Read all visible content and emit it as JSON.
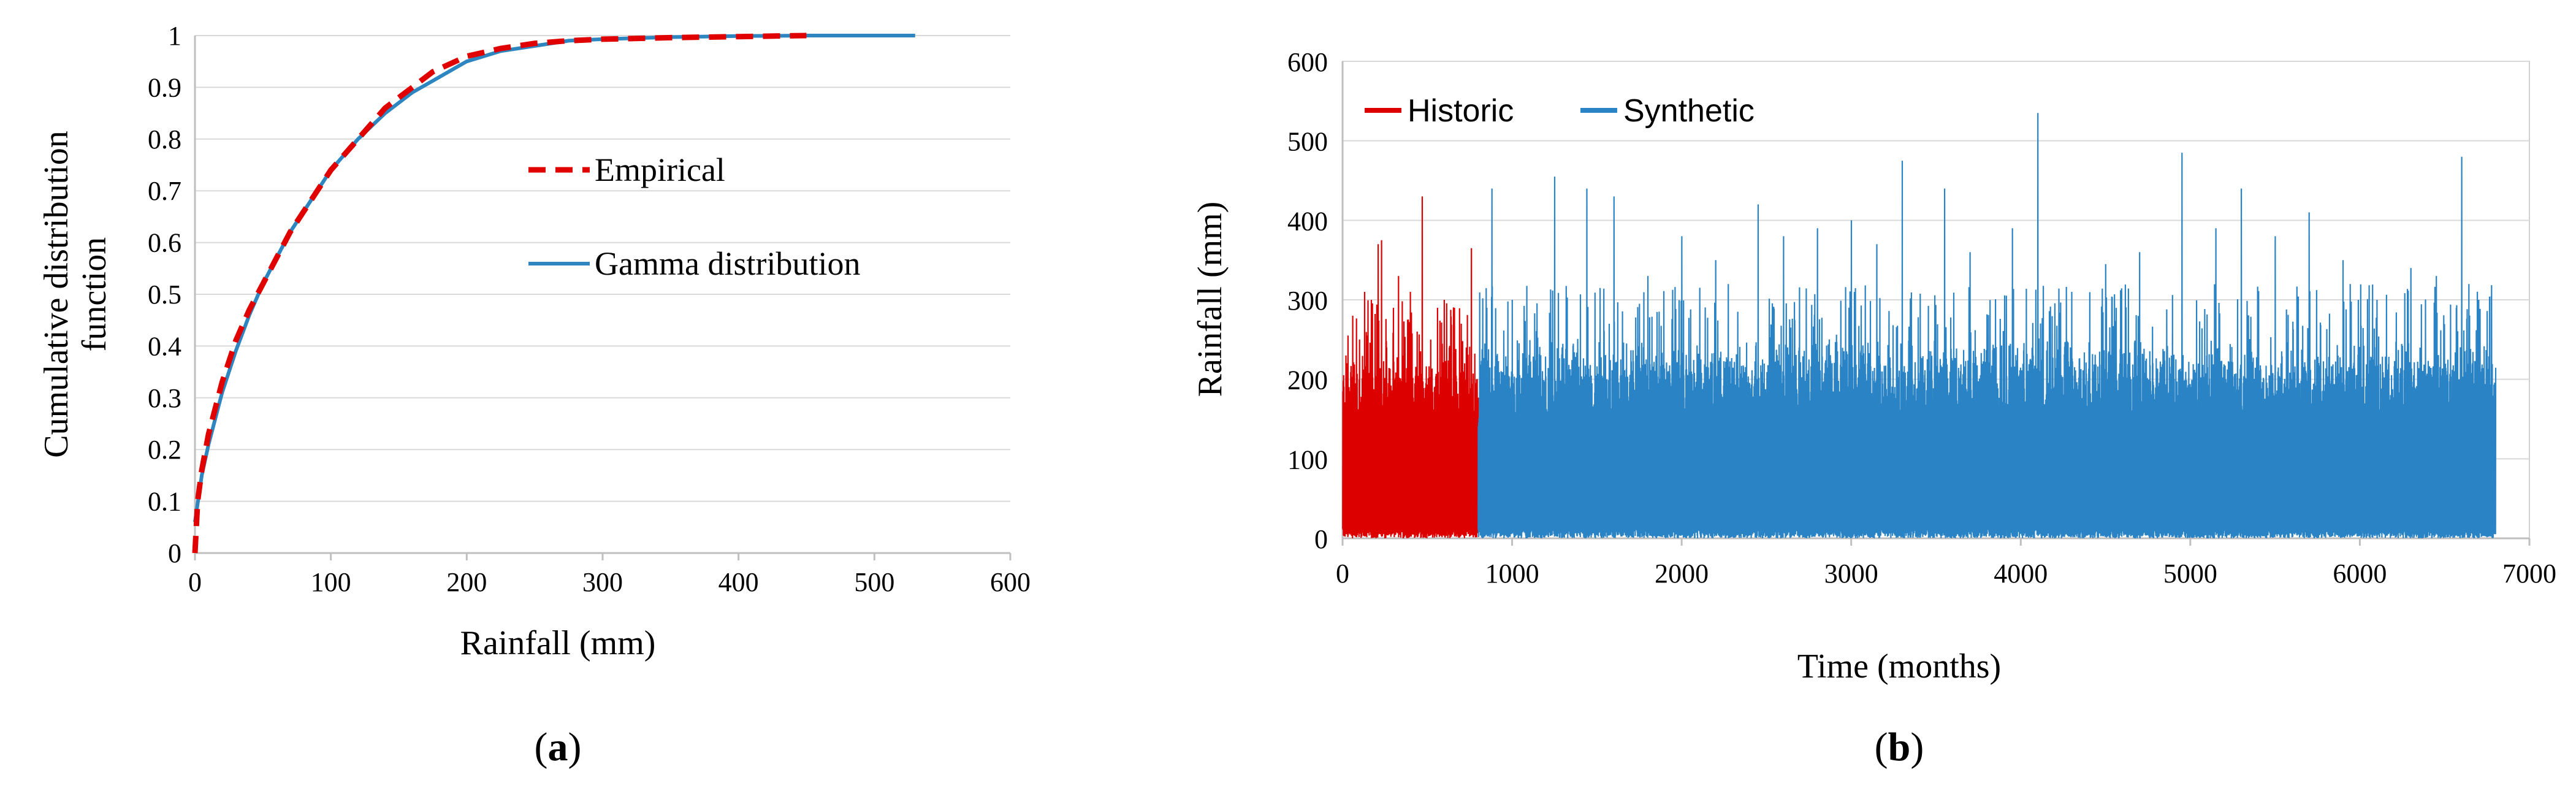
{
  "panel_a_caption": {
    "open": "(",
    "label": "a",
    "close": ")"
  },
  "panel_b_caption": {
    "open": "(",
    "label": "b",
    "close": ")"
  },
  "colors": {
    "empirical": "#e00000",
    "gamma": "#2e86c1",
    "historic": "#dd0000",
    "synthetic": "#2a83c4",
    "grid": "#d9d9d9",
    "axis": "#bfbfbf"
  },
  "chart_data": [
    {
      "type": "line",
      "panel": "a",
      "xlabel": "Rainfall (mm)",
      "ylabel": [
        "Cumulative distribution",
        "function"
      ],
      "xlim": [
        0,
        600
      ],
      "ylim": [
        0,
        1
      ],
      "xticks": [
        "0",
        "100",
        "200",
        "300",
        "400",
        "500",
        "600"
      ],
      "yticks": [
        "0",
        "0.1",
        "0.2",
        "0.3",
        "0.4",
        "0.5",
        "0.6",
        "0.7",
        "0.8",
        "0.9",
        "1"
      ],
      "grid": "horizontal",
      "legend_position": "center-right",
      "series": [
        {
          "name": "Empirical",
          "style": "dashed",
          "x": [
            0,
            2,
            5,
            10,
            20,
            30,
            40,
            50,
            60,
            70,
            80,
            90,
            100,
            110,
            120,
            130,
            140,
            150,
            160,
            175,
            200,
            225,
            250,
            275,
            300,
            350,
            400,
            450
          ],
          "y": [
            0.0,
            0.1,
            0.16,
            0.23,
            0.33,
            0.41,
            0.47,
            0.52,
            0.57,
            0.62,
            0.66,
            0.7,
            0.74,
            0.77,
            0.8,
            0.83,
            0.86,
            0.88,
            0.9,
            0.93,
            0.96,
            0.975,
            0.985,
            0.99,
            0.993,
            0.996,
            0.998,
            1.0
          ]
        },
        {
          "name": "Gamma distribution",
          "style": "solid",
          "x": [
            0,
            5,
            10,
            20,
            30,
            40,
            50,
            60,
            70,
            80,
            90,
            100,
            120,
            140,
            160,
            180,
            200,
            225,
            250,
            275,
            300,
            350,
            400,
            450,
            530
          ],
          "y": [
            0.06,
            0.15,
            0.21,
            0.31,
            0.39,
            0.46,
            0.52,
            0.57,
            0.62,
            0.66,
            0.7,
            0.74,
            0.8,
            0.85,
            0.89,
            0.92,
            0.95,
            0.97,
            0.98,
            0.99,
            0.993,
            0.997,
            0.999,
            1.0,
            1.0
          ]
        }
      ]
    },
    {
      "type": "line",
      "panel": "b",
      "xlabel": "Time (months)",
      "ylabel": "Rainfall (mm)",
      "xlim": [
        0,
        7000
      ],
      "ylim": [
        0,
        600
      ],
      "xticks": [
        "0",
        "1000",
        "2000",
        "3000",
        "4000",
        "5000",
        "6000",
        "7000"
      ],
      "yticks": [
        "0",
        "100",
        "200",
        "300",
        "400",
        "500",
        "600"
      ],
      "grid": "horizontal",
      "legend_position": "top-left",
      "series": [
        {
          "name": "Historic",
          "x_range": [
            1,
            800
          ],
          "baseline_range": [
            140,
            240
          ],
          "peaks_x": [
            20,
            60,
            100,
            130,
            170,
            210,
            230,
            260,
            300,
            330,
            360,
            400,
            440,
            470,
            520,
            560,
            600,
            630,
            660,
            700,
            730,
            760,
            790
          ],
          "peaks_y": [
            230,
            280,
            250,
            310,
            300,
            370,
            375,
            240,
            290,
            330,
            230,
            310,
            260,
            430,
            250,
            290,
            300,
            240,
            290,
            270,
            240,
            365,
            200
          ]
        },
        {
          "name": "Synthetic",
          "x_range": [
            800,
            6800
          ],
          "baseline_range": [
            140,
            260
          ],
          "peaks_x": [
            880,
            1000,
            1250,
            1440,
            1600,
            1800,
            2000,
            2200,
            2450,
            2600,
            2800,
            3000,
            3150,
            3300,
            3550,
            3700,
            3950,
            4100,
            4300,
            4500,
            4700,
            4950,
            5150,
            5300,
            5500,
            5700,
            5900,
            6100,
            6300,
            6450,
            6600,
            6700
          ],
          "peaks_y": [
            440,
            300,
            455,
            440,
            430,
            330,
            380,
            350,
            420,
            380,
            390,
            400,
            370,
            475,
            440,
            360,
            390,
            535,
            310,
            345,
            360,
            485,
            390,
            440,
            380,
            410,
            350,
            300,
            340,
            330,
            480,
            300
          ]
        }
      ]
    }
  ]
}
